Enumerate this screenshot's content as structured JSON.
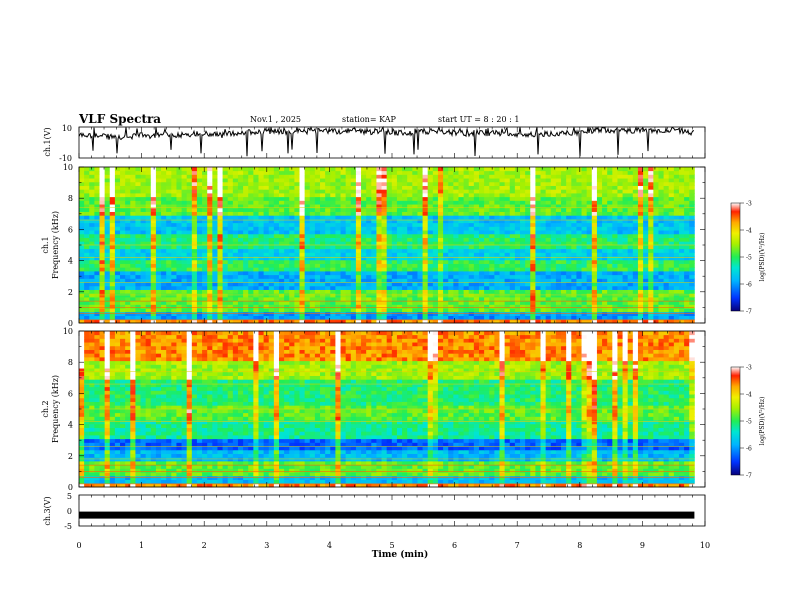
{
  "header": {
    "title": "VLF Spectra",
    "date": "Nov.1  , 2025",
    "station": "station= KAP",
    "start": "start  UT  =   8  : 20 : 1"
  },
  "chart_data": [
    {
      "type": "line",
      "title": "VLF Spectra",
      "ylabel": "ch.1(V)",
      "ylim": [
        -10,
        10
      ],
      "y_ticks": [
        "10",
        "-10"
      ],
      "x_unit": "min",
      "xlim": [
        0,
        10
      ],
      "data_end_min": 9.83,
      "mean_level": 4.5,
      "color": "#000000"
    },
    {
      "type": "heatmap",
      "name": "ch.1 spectrogram",
      "ylabel_channel": "ch.1",
      "ylabel": "Frequency  (kHz)",
      "ylim": [
        0,
        10
      ],
      "y_ticks": [
        "0",
        "2",
        "4",
        "6",
        "8",
        "10"
      ],
      "xlim": [
        0,
        10
      ],
      "colorbar": {
        "label": "log(PSD)(V²/Hz)",
        "range": [
          -7,
          -3
        ],
        "tick_labels": [
          "-3",
          "-4",
          "-5",
          "-6",
          "-7"
        ]
      }
    },
    {
      "type": "heatmap",
      "name": "ch.2 spectrogram",
      "ylabel_channel": "ch.2",
      "ylabel": "Frequency  (kHz)",
      "ylim": [
        0,
        10
      ],
      "y_ticks": [
        "0",
        "2",
        "4",
        "6",
        "8",
        "10"
      ],
      "xlim": [
        0,
        10
      ],
      "colorbar": {
        "label": "log(PSD)(V²/Hz)",
        "range": [
          -7,
          -3
        ],
        "tick_labels": [
          "-3",
          "-4",
          "-5",
          "-6",
          "-7"
        ]
      }
    },
    {
      "type": "line",
      "ylabel": "ch.3(V)",
      "ylim": [
        -5,
        5
      ],
      "y_ticks": [
        "5",
        "0",
        "-5"
      ],
      "mean_level": -1.5,
      "xlabel": "Time  (min)",
      "x_ticks": [
        "0",
        "1",
        "2",
        "3",
        "4",
        "5",
        "6",
        "7",
        "8",
        "9",
        "10"
      ],
      "xlim": [
        0,
        10
      ]
    }
  ],
  "colors": {
    "palette": [
      "#08007a",
      "#0033ff",
      "#00b4ff",
      "#00e6d2",
      "#22ee55",
      "#a8f000",
      "#f0f000",
      "#ffaa00",
      "#ff2200",
      "#ffffff"
    ]
  }
}
